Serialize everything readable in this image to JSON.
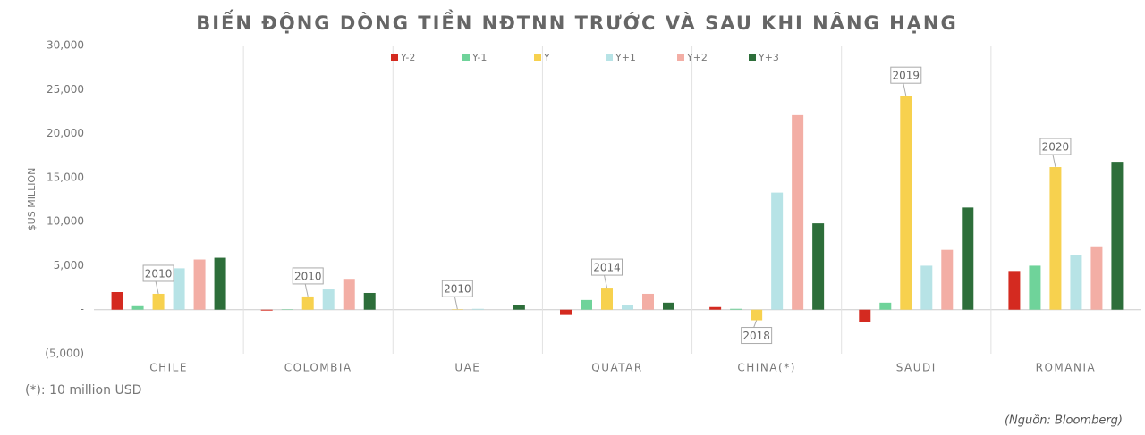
{
  "chart_data": {
    "type": "bar",
    "title": "BIẾN ĐỘNG DÒNG TIỀN NĐTNN TRƯỚC VÀ SAU KHI NÂNG HẠNG",
    "y_label": "$US MILLION",
    "categories": [
      "CHILE",
      "COLOMBIA",
      "UAE",
      "QUATAR",
      "CHINA(*)",
      "SAUDI",
      "ROMANIA"
    ],
    "annotations": [
      "2010",
      "2010",
      "2010",
      "2014",
      "2018",
      "2019",
      "2020"
    ],
    "series": [
      {
        "name": "Y-2",
        "color": "#d42a20",
        "values": [
          2000,
          -100,
          0,
          -600,
          300,
          -1400,
          4400
        ]
      },
      {
        "name": "Y-1",
        "color": "#6fd39a",
        "values": [
          400,
          50,
          0,
          1100,
          100,
          800,
          5000
        ]
      },
      {
        "name": "Y",
        "color": "#f7d14e",
        "values": [
          1800,
          1500,
          50,
          2500,
          -1200,
          24300,
          16200
        ]
      },
      {
        "name": "Y+1",
        "color": "#b7e3e6",
        "values": [
          4700,
          2300,
          100,
          500,
          13300,
          5000,
          6200
        ]
      },
      {
        "name": "Y+2",
        "color": "#f3aea5",
        "values": [
          5700,
          3500,
          0,
          1800,
          22100,
          6800,
          7200
        ]
      },
      {
        "name": "Y+3",
        "color": "#2d6e3a",
        "values": [
          5900,
          1900,
          500,
          800,
          9800,
          11600,
          16800
        ]
      }
    ],
    "ylim": [
      -5000,
      30000
    ],
    "yticks": [
      {
        "value": -5000,
        "label": "(5,000)"
      },
      {
        "value": 0,
        "label": "-"
      },
      {
        "value": 5000,
        "label": "5,000"
      },
      {
        "value": 10000,
        "label": "10,000"
      },
      {
        "value": 15000,
        "label": "15,000"
      },
      {
        "value": 20000,
        "label": "20,000"
      },
      {
        "value": 25000,
        "label": "25,000"
      },
      {
        "value": 30000,
        "label": "30,000"
      }
    ],
    "footnote": "(*): 10 million USD",
    "source": "(Nguồn:  Bloomberg)"
  }
}
